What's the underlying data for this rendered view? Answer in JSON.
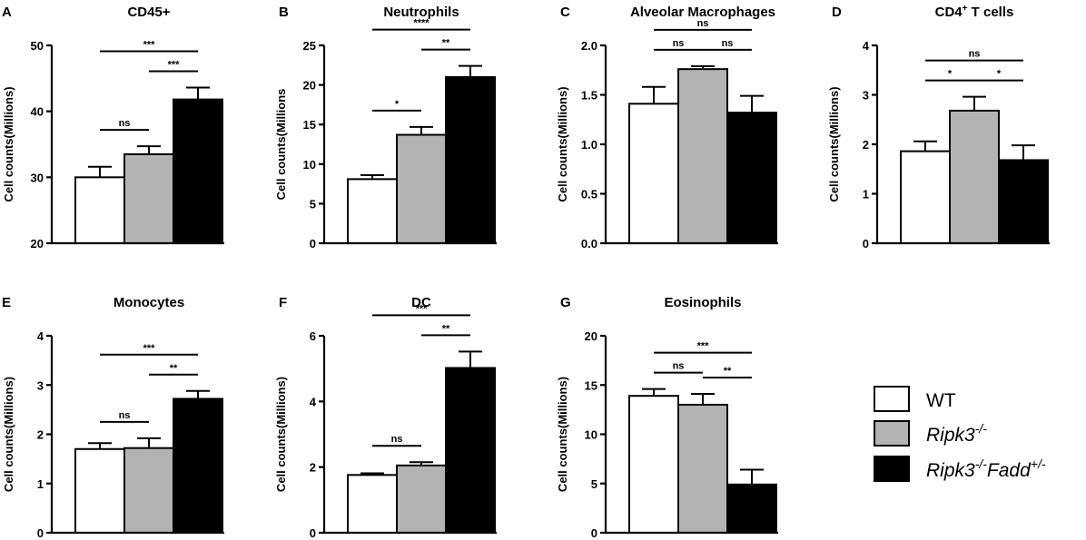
{
  "colors": {
    "WT": "#ffffff",
    "Ripk3": "#b3b3b3",
    "RipkFadd": "#000000",
    "stroke": "#000000"
  },
  "legend": {
    "items": [
      {
        "key": "WT",
        "label": "WT"
      },
      {
        "key": "Ripk3",
        "gene": "Ripk3",
        "sup": "-/-"
      },
      {
        "key": "RipkFadd",
        "gene": "Ripk3",
        "sup": "-/-",
        "gene2": "Fadd",
        "sup2": "+/-"
      }
    ]
  },
  "chart_data": [
    {
      "panel": "A",
      "type": "bar",
      "title": "CD45+",
      "ylabel": "Cell counts(Millions)",
      "ylim": [
        20,
        50
      ],
      "yticks": [
        20,
        30,
        40,
        50
      ],
      "categories": [
        "WT",
        "Ripk3-/-",
        "Ripk3-/-Fadd+/-"
      ],
      "values": [
        30.0,
        33.5,
        41.8
      ],
      "errors": [
        1.6,
        1.2,
        1.8
      ],
      "significance": [
        {
          "from": 0,
          "to": 1,
          "label": "ns"
        },
        {
          "from": 1,
          "to": 2,
          "label": "***"
        },
        {
          "from": 0,
          "to": 2,
          "label": "***"
        }
      ]
    },
    {
      "panel": "B",
      "type": "bar",
      "title": "Neutrophils",
      "ylabel": "Cell counts(Millions",
      "ylim": [
        0,
        25
      ],
      "yticks": [
        0,
        5,
        10,
        15,
        20,
        25
      ],
      "categories": [
        "WT",
        "Ripk3-/-",
        "Ripk3-/-Fadd+/-"
      ],
      "values": [
        8.1,
        13.7,
        21.0
      ],
      "errors": [
        0.5,
        1.0,
        1.4
      ],
      "significance": [
        {
          "from": 0,
          "to": 1,
          "label": "*"
        },
        {
          "from": 1,
          "to": 2,
          "label": "**"
        },
        {
          "from": 0,
          "to": 2,
          "label": "****"
        }
      ]
    },
    {
      "panel": "C",
      "type": "bar",
      "title": "Alveolar Macrophages",
      "ylabel": "Cell counts(Millions)",
      "ylim": [
        0,
        2.0
      ],
      "yticks": [
        0.0,
        0.5,
        1.0,
        1.5,
        2.0
      ],
      "tickDecimals": 1,
      "categories": [
        "WT",
        "Ripk3-/-",
        "Ripk3-/-Fadd+/-"
      ],
      "values": [
        1.41,
        1.76,
        1.32
      ],
      "errors": [
        0.17,
        0.03,
        0.17
      ],
      "significance": [
        {
          "from": 0,
          "to": 1,
          "label": "ns"
        },
        {
          "from": 1,
          "to": 2,
          "label": "ns"
        },
        {
          "from": 0,
          "to": 2,
          "label": "ns"
        }
      ]
    },
    {
      "panel": "D",
      "type": "bar",
      "title": "CD4",
      "titleSup": "+",
      "titleRest": " T cells",
      "ylabel": "Cell counts(Millions)",
      "ylim": [
        0,
        4
      ],
      "yticks": [
        0,
        1,
        2,
        3,
        4
      ],
      "categories": [
        "WT",
        "Ripk3-/-",
        "Ripk3-/-Fadd+/-"
      ],
      "values": [
        1.86,
        2.68,
        1.68
      ],
      "errors": [
        0.2,
        0.28,
        0.3
      ],
      "significance": [
        {
          "from": 0,
          "to": 1,
          "label": "*"
        },
        {
          "from": 1,
          "to": 2,
          "label": "*"
        },
        {
          "from": 0,
          "to": 2,
          "label": "ns"
        }
      ]
    },
    {
      "panel": "E",
      "type": "bar",
      "title": "Monocytes",
      "ylabel": "Cell counts(Millions)",
      "ylim": [
        0,
        4
      ],
      "yticks": [
        0,
        1,
        2,
        3,
        4
      ],
      "categories": [
        "WT",
        "Ripk3-/-",
        "Ripk3-/-Fadd+/-"
      ],
      "values": [
        1.7,
        1.72,
        2.72
      ],
      "errors": [
        0.12,
        0.2,
        0.16
      ],
      "significance": [
        {
          "from": 0,
          "to": 1,
          "label": "ns"
        },
        {
          "from": 1,
          "to": 2,
          "label": "**"
        },
        {
          "from": 0,
          "to": 2,
          "label": "***"
        }
      ]
    },
    {
      "panel": "F",
      "type": "bar",
      "title": "DC",
      "ylabel": "Cell counts(Millions)",
      "ylim": [
        0,
        6
      ],
      "yticks": [
        0,
        2,
        4,
        6
      ],
      "categories": [
        "WT",
        "Ripk3-/-",
        "Ripk3-/-Fadd+/-"
      ],
      "values": [
        1.76,
        2.05,
        5.02
      ],
      "errors": [
        0.05,
        0.1,
        0.5
      ],
      "significance": [
        {
          "from": 0,
          "to": 1,
          "label": "ns"
        },
        {
          "from": 1,
          "to": 2,
          "label": "**"
        },
        {
          "from": 0,
          "to": 2,
          "label": "***"
        }
      ]
    },
    {
      "panel": "G",
      "type": "bar",
      "title": "Eosinophils",
      "ylabel": "Cell counts(Millions)",
      "ylim": [
        0,
        20
      ],
      "yticks": [
        0,
        5,
        10,
        15,
        20
      ],
      "categories": [
        "WT",
        "Ripk3-/-",
        "Ripk3-/-Fadd+/-"
      ],
      "values": [
        13.9,
        13.0,
        4.9
      ],
      "errors": [
        0.7,
        1.1,
        1.5
      ],
      "significance": [
        {
          "from": 0,
          "to": 1,
          "label": "ns"
        },
        {
          "from": 1,
          "to": 2,
          "label": "**"
        },
        {
          "from": 0,
          "to": 2,
          "label": "***"
        }
      ]
    }
  ]
}
